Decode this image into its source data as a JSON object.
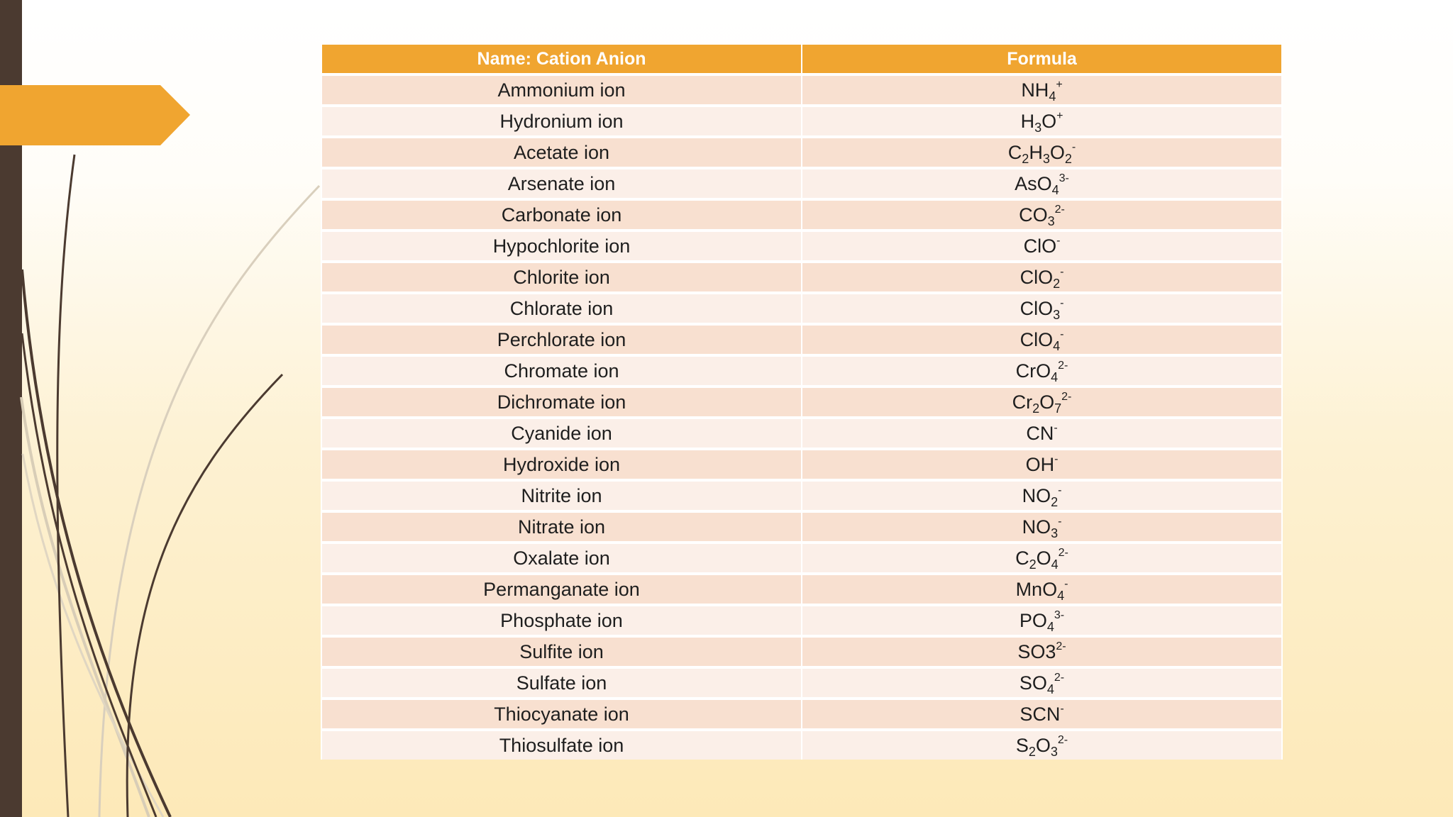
{
  "colors": {
    "header_bg": "#f0a530",
    "row_odd": "#f8e0d0",
    "row_even": "#fbefe8",
    "left_bar": "#4b3a30",
    "accent_tab": "#f0a530"
  },
  "table": {
    "headers": [
      "Name: Cation  Anion",
      "Formula"
    ],
    "rows": [
      {
        "name": "Ammonium ion",
        "formula": [
          {
            "t": "NH"
          },
          {
            "t": "4",
            "v": "sub"
          },
          {
            "t": "+",
            "v": "sup"
          }
        ]
      },
      {
        "name": "Hydronium ion",
        "formula": [
          {
            "t": "H"
          },
          {
            "t": "3",
            "v": "sub"
          },
          {
            "t": "O"
          },
          {
            "t": "+",
            "v": "sup"
          }
        ]
      },
      {
        "name": "Acetate ion",
        "formula": [
          {
            "t": "C"
          },
          {
            "t": "2",
            "v": "sub"
          },
          {
            "t": "H"
          },
          {
            "t": "3",
            "v": "sub"
          },
          {
            "t": "O"
          },
          {
            "t": "2",
            "v": "sub"
          },
          {
            "t": "-",
            "v": "sup"
          }
        ]
      },
      {
        "name": "Arsenate ion",
        "formula": [
          {
            "t": "AsO"
          },
          {
            "t": "4",
            "v": "sub"
          },
          {
            "t": "3-",
            "v": "sup"
          }
        ]
      },
      {
        "name": "Carbonate ion",
        "formula": [
          {
            "t": "CO"
          },
          {
            "t": "3",
            "v": "sub"
          },
          {
            "t": "2-",
            "v": "sup"
          }
        ]
      },
      {
        "name": "Hypochlorite ion",
        "formula": [
          {
            "t": "ClO"
          },
          {
            "t": "-",
            "v": "sup"
          }
        ]
      },
      {
        "name": "Chlorite ion",
        "formula": [
          {
            "t": "ClO"
          },
          {
            "t": "2",
            "v": "sub"
          },
          {
            "t": "-",
            "v": "sup"
          }
        ]
      },
      {
        "name": "Chlorate ion",
        "formula": [
          {
            "t": "ClO"
          },
          {
            "t": "3",
            "v": "sub"
          },
          {
            "t": "-",
            "v": "sup"
          }
        ]
      },
      {
        "name": "Perchlorate ion",
        "formula": [
          {
            "t": "ClO"
          },
          {
            "t": "4",
            "v": "sub"
          },
          {
            "t": "-",
            "v": "sup"
          }
        ]
      },
      {
        "name": "Chromate ion",
        "formula": [
          {
            "t": "CrO"
          },
          {
            "t": "4",
            "v": "sub"
          },
          {
            "t": "2-",
            "v": "sup"
          }
        ]
      },
      {
        "name": "Dichromate ion",
        "formula": [
          {
            "t": "Cr"
          },
          {
            "t": "2",
            "v": "sub"
          },
          {
            "t": "O"
          },
          {
            "t": "7",
            "v": "sub"
          },
          {
            "t": "2-",
            "v": "sup"
          }
        ]
      },
      {
        "name": "Cyanide ion",
        "formula": [
          {
            "t": "CN"
          },
          {
            "t": "-",
            "v": "sup"
          }
        ]
      },
      {
        "name": "Hydroxide ion",
        "formula": [
          {
            "t": "OH"
          },
          {
            "t": "-",
            "v": "sup"
          }
        ]
      },
      {
        "name": "Nitrite ion",
        "formula": [
          {
            "t": "NO"
          },
          {
            "t": "2",
            "v": "sub"
          },
          {
            "t": "-",
            "v": "sup"
          }
        ]
      },
      {
        "name": "Nitrate ion",
        "formula": [
          {
            "t": "NO"
          },
          {
            "t": "3",
            "v": "sub"
          },
          {
            "t": "-",
            "v": "sup"
          }
        ]
      },
      {
        "name": "Oxalate ion",
        "formula": [
          {
            "t": "C"
          },
          {
            "t": "2",
            "v": "sub"
          },
          {
            "t": "O"
          },
          {
            "t": "4",
            "v": "sub"
          },
          {
            "t": "2-",
            "v": "sup"
          }
        ]
      },
      {
        "name": "Permanganate ion",
        "formula": [
          {
            "t": "MnO"
          },
          {
            "t": "4",
            "v": "sub"
          },
          {
            "t": "-",
            "v": "sup"
          }
        ]
      },
      {
        "name": "Phosphate ion",
        "formula": [
          {
            "t": "PO"
          },
          {
            "t": "4",
            "v": "sub"
          },
          {
            "t": "3-",
            "v": "sup"
          }
        ]
      },
      {
        "name": "Sulfite ion",
        "formula": [
          {
            "t": "SO3"
          },
          {
            "t": "2-",
            "v": "sup"
          }
        ]
      },
      {
        "name": "Sulfate ion",
        "formula": [
          {
            "t": "SO"
          },
          {
            "t": "4",
            "v": "sub"
          },
          {
            "t": "2-",
            "v": "sup"
          }
        ]
      },
      {
        "name": "Thiocyanate ion",
        "formula": [
          {
            "t": "SCN"
          },
          {
            "t": "-",
            "v": "sup"
          }
        ]
      },
      {
        "name": "Thiosulfate ion",
        "formula": [
          {
            "t": "S"
          },
          {
            "t": "2",
            "v": "sub"
          },
          {
            "t": "O"
          },
          {
            "t": "3",
            "v": "sub"
          },
          {
            "t": "2-",
            "v": "sup"
          }
        ]
      }
    ]
  }
}
